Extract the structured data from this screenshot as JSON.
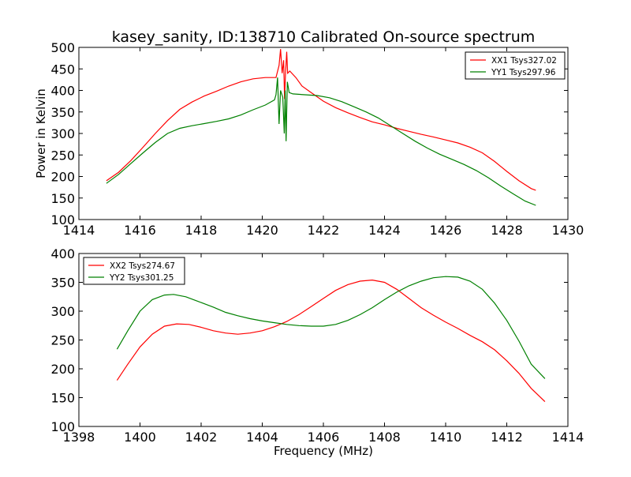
{
  "chart_data": [
    {
      "type": "line",
      "title": "kasey_sanity, ID:138710 Calibrated On-source spectrum",
      "xlabel": "",
      "ylabel": "Power in Kelvin",
      "xlim": [
        1414,
        1430
      ],
      "ylim": [
        100,
        500
      ],
      "xticks": [
        "1414",
        "1416",
        "1418",
        "1420",
        "1422",
        "1424",
        "1426",
        "1428",
        "1430"
      ],
      "yticks": [
        "100",
        "150",
        "200",
        "250",
        "300",
        "350",
        "400",
        "450",
        "500"
      ],
      "legend": "top-right",
      "grid": false,
      "series": [
        {
          "name": "XX1 Tsys327.02",
          "color": "#ff0000",
          "points": [
            [
              1414.9,
              190
            ],
            [
              1415.3,
              210
            ],
            [
              1415.7,
              237
            ],
            [
              1416.1,
              268
            ],
            [
              1416.5,
              300
            ],
            [
              1416.9,
              330
            ],
            [
              1417.3,
              356
            ],
            [
              1417.7,
              373
            ],
            [
              1418.1,
              387
            ],
            [
              1418.5,
              398
            ],
            [
              1418.9,
              410
            ],
            [
              1419.3,
              420
            ],
            [
              1419.7,
              427
            ],
            [
              1420.1,
              430
            ],
            [
              1420.45,
              430
            ],
            [
              1420.55,
              458
            ],
            [
              1420.6,
              496
            ],
            [
              1420.65,
              440
            ],
            [
              1420.7,
              470
            ],
            [
              1420.73,
              380
            ],
            [
              1420.76,
              436
            ],
            [
              1420.8,
              490
            ],
            [
              1420.83,
              440
            ],
            [
              1420.9,
              445
            ],
            [
              1421.1,
              430
            ],
            [
              1421.3,
              410
            ],
            [
              1421.6,
              395
            ],
            [
              1422.0,
              375
            ],
            [
              1422.4,
              360
            ],
            [
              1422.8,
              348
            ],
            [
              1423.2,
              337
            ],
            [
              1423.6,
              327
            ],
            [
              1424.0,
              320
            ],
            [
              1424.4,
              312
            ],
            [
              1424.8,
              305
            ],
            [
              1425.2,
              298
            ],
            [
              1425.6,
              292
            ],
            [
              1426.0,
              285
            ],
            [
              1426.4,
              278
            ],
            [
              1426.8,
              268
            ],
            [
              1427.2,
              255
            ],
            [
              1427.6,
              235
            ],
            [
              1428.0,
              212
            ],
            [
              1428.4,
              190
            ],
            [
              1428.8,
              172
            ],
            [
              1428.95,
              168
            ]
          ]
        },
        {
          "name": "YY1 Tsys297.96",
          "color": "#008000",
          "points": [
            [
              1414.9,
              184
            ],
            [
              1415.3,
              205
            ],
            [
              1415.7,
              230
            ],
            [
              1416.1,
              255
            ],
            [
              1416.5,
              279
            ],
            [
              1416.9,
              300
            ],
            [
              1417.3,
              312
            ],
            [
              1417.7,
              318
            ],
            [
              1418.1,
              323
            ],
            [
              1418.5,
              328
            ],
            [
              1418.9,
              334
            ],
            [
              1419.3,
              343
            ],
            [
              1419.7,
              355
            ],
            [
              1420.1,
              366
            ],
            [
              1420.4,
              378
            ],
            [
              1420.45,
              390
            ],
            [
              1420.5,
              430
            ],
            [
              1420.55,
              322
            ],
            [
              1420.6,
              400
            ],
            [
              1420.67,
              384
            ],
            [
              1420.72,
              300
            ],
            [
              1420.75,
              400
            ],
            [
              1420.78,
              282
            ],
            [
              1420.82,
              420
            ],
            [
              1420.88,
              395
            ],
            [
              1421.0,
              392
            ],
            [
              1421.4,
              390
            ],
            [
              1421.8,
              388
            ],
            [
              1422.2,
              383
            ],
            [
              1422.6,
              374
            ],
            [
              1423.0,
              362
            ],
            [
              1423.4,
              350
            ],
            [
              1423.8,
              336
            ],
            [
              1424.2,
              318
            ],
            [
              1424.6,
              300
            ],
            [
              1425.0,
              282
            ],
            [
              1425.4,
              266
            ],
            [
              1425.8,
              252
            ],
            [
              1426.2,
              240
            ],
            [
              1426.6,
              228
            ],
            [
              1427.0,
              214
            ],
            [
              1427.4,
              197
            ],
            [
              1427.8,
              178
            ],
            [
              1428.2,
              160
            ],
            [
              1428.6,
              143
            ],
            [
              1428.95,
              133
            ]
          ]
        }
      ]
    },
    {
      "type": "line",
      "title": "",
      "xlabel": "Frequency (MHz)",
      "ylabel": "",
      "xlim": [
        1398,
        1414
      ],
      "ylim": [
        100,
        400
      ],
      "xticks": [
        "1398",
        "1400",
        "1402",
        "1404",
        "1406",
        "1408",
        "1410",
        "1412",
        "1414"
      ],
      "yticks": [
        "100",
        "150",
        "200",
        "250",
        "300",
        "350",
        "400"
      ],
      "legend": "top-left",
      "grid": false,
      "series": [
        {
          "name": "XX2 Tsys274.67",
          "color": "#ff0000",
          "points": [
            [
              1399.25,
              180
            ],
            [
              1399.6,
              208
            ],
            [
              1400.0,
              238
            ],
            [
              1400.4,
              260
            ],
            [
              1400.8,
              274
            ],
            [
              1401.2,
              278
            ],
            [
              1401.6,
              277
            ],
            [
              1402.0,
              272
            ],
            [
              1402.4,
              266
            ],
            [
              1402.8,
              262
            ],
            [
              1403.2,
              260
            ],
            [
              1403.6,
              262
            ],
            [
              1404.0,
              266
            ],
            [
              1404.4,
              273
            ],
            [
              1404.8,
              282
            ],
            [
              1405.2,
              294
            ],
            [
              1405.6,
              308
            ],
            [
              1406.0,
              322
            ],
            [
              1406.4,
              336
            ],
            [
              1406.8,
              346
            ],
            [
              1407.2,
              352
            ],
            [
              1407.6,
              354
            ],
            [
              1408.0,
              350
            ],
            [
              1408.4,
              338
            ],
            [
              1408.8,
              322
            ],
            [
              1409.2,
              306
            ],
            [
              1409.6,
              293
            ],
            [
              1410.0,
              281
            ],
            [
              1410.4,
              270
            ],
            [
              1410.8,
              258
            ],
            [
              1411.2,
              247
            ],
            [
              1411.6,
              233
            ],
            [
              1412.0,
              214
            ],
            [
              1412.4,
              192
            ],
            [
              1412.8,
              166
            ],
            [
              1413.25,
              143
            ]
          ]
        },
        {
          "name": "YY2 Tsys301.25",
          "color": "#008000",
          "points": [
            [
              1399.25,
              234
            ],
            [
              1399.6,
              266
            ],
            [
              1400.0,
              300
            ],
            [
              1400.4,
              320
            ],
            [
              1400.8,
              328
            ],
            [
              1401.1,
              329
            ],
            [
              1401.5,
              325
            ],
            [
              1402.0,
              315
            ],
            [
              1402.4,
              307
            ],
            [
              1402.8,
              298
            ],
            [
              1403.2,
              292
            ],
            [
              1403.6,
              287
            ],
            [
              1404.0,
              283
            ],
            [
              1404.4,
              280
            ],
            [
              1404.8,
              277
            ],
            [
              1405.2,
              275
            ],
            [
              1405.6,
              274
            ],
            [
              1406.0,
              274
            ],
            [
              1406.4,
              277
            ],
            [
              1406.8,
              284
            ],
            [
              1407.2,
              294
            ],
            [
              1407.6,
              306
            ],
            [
              1408.0,
              320
            ],
            [
              1408.4,
              333
            ],
            [
              1408.8,
              344
            ],
            [
              1409.2,
              352
            ],
            [
              1409.6,
              358
            ],
            [
              1410.0,
              360
            ],
            [
              1410.4,
              359
            ],
            [
              1410.8,
              352
            ],
            [
              1411.2,
              338
            ],
            [
              1411.6,
              314
            ],
            [
              1412.0,
              284
            ],
            [
              1412.4,
              248
            ],
            [
              1412.8,
              208
            ],
            [
              1413.25,
              183
            ]
          ]
        }
      ]
    }
  ]
}
